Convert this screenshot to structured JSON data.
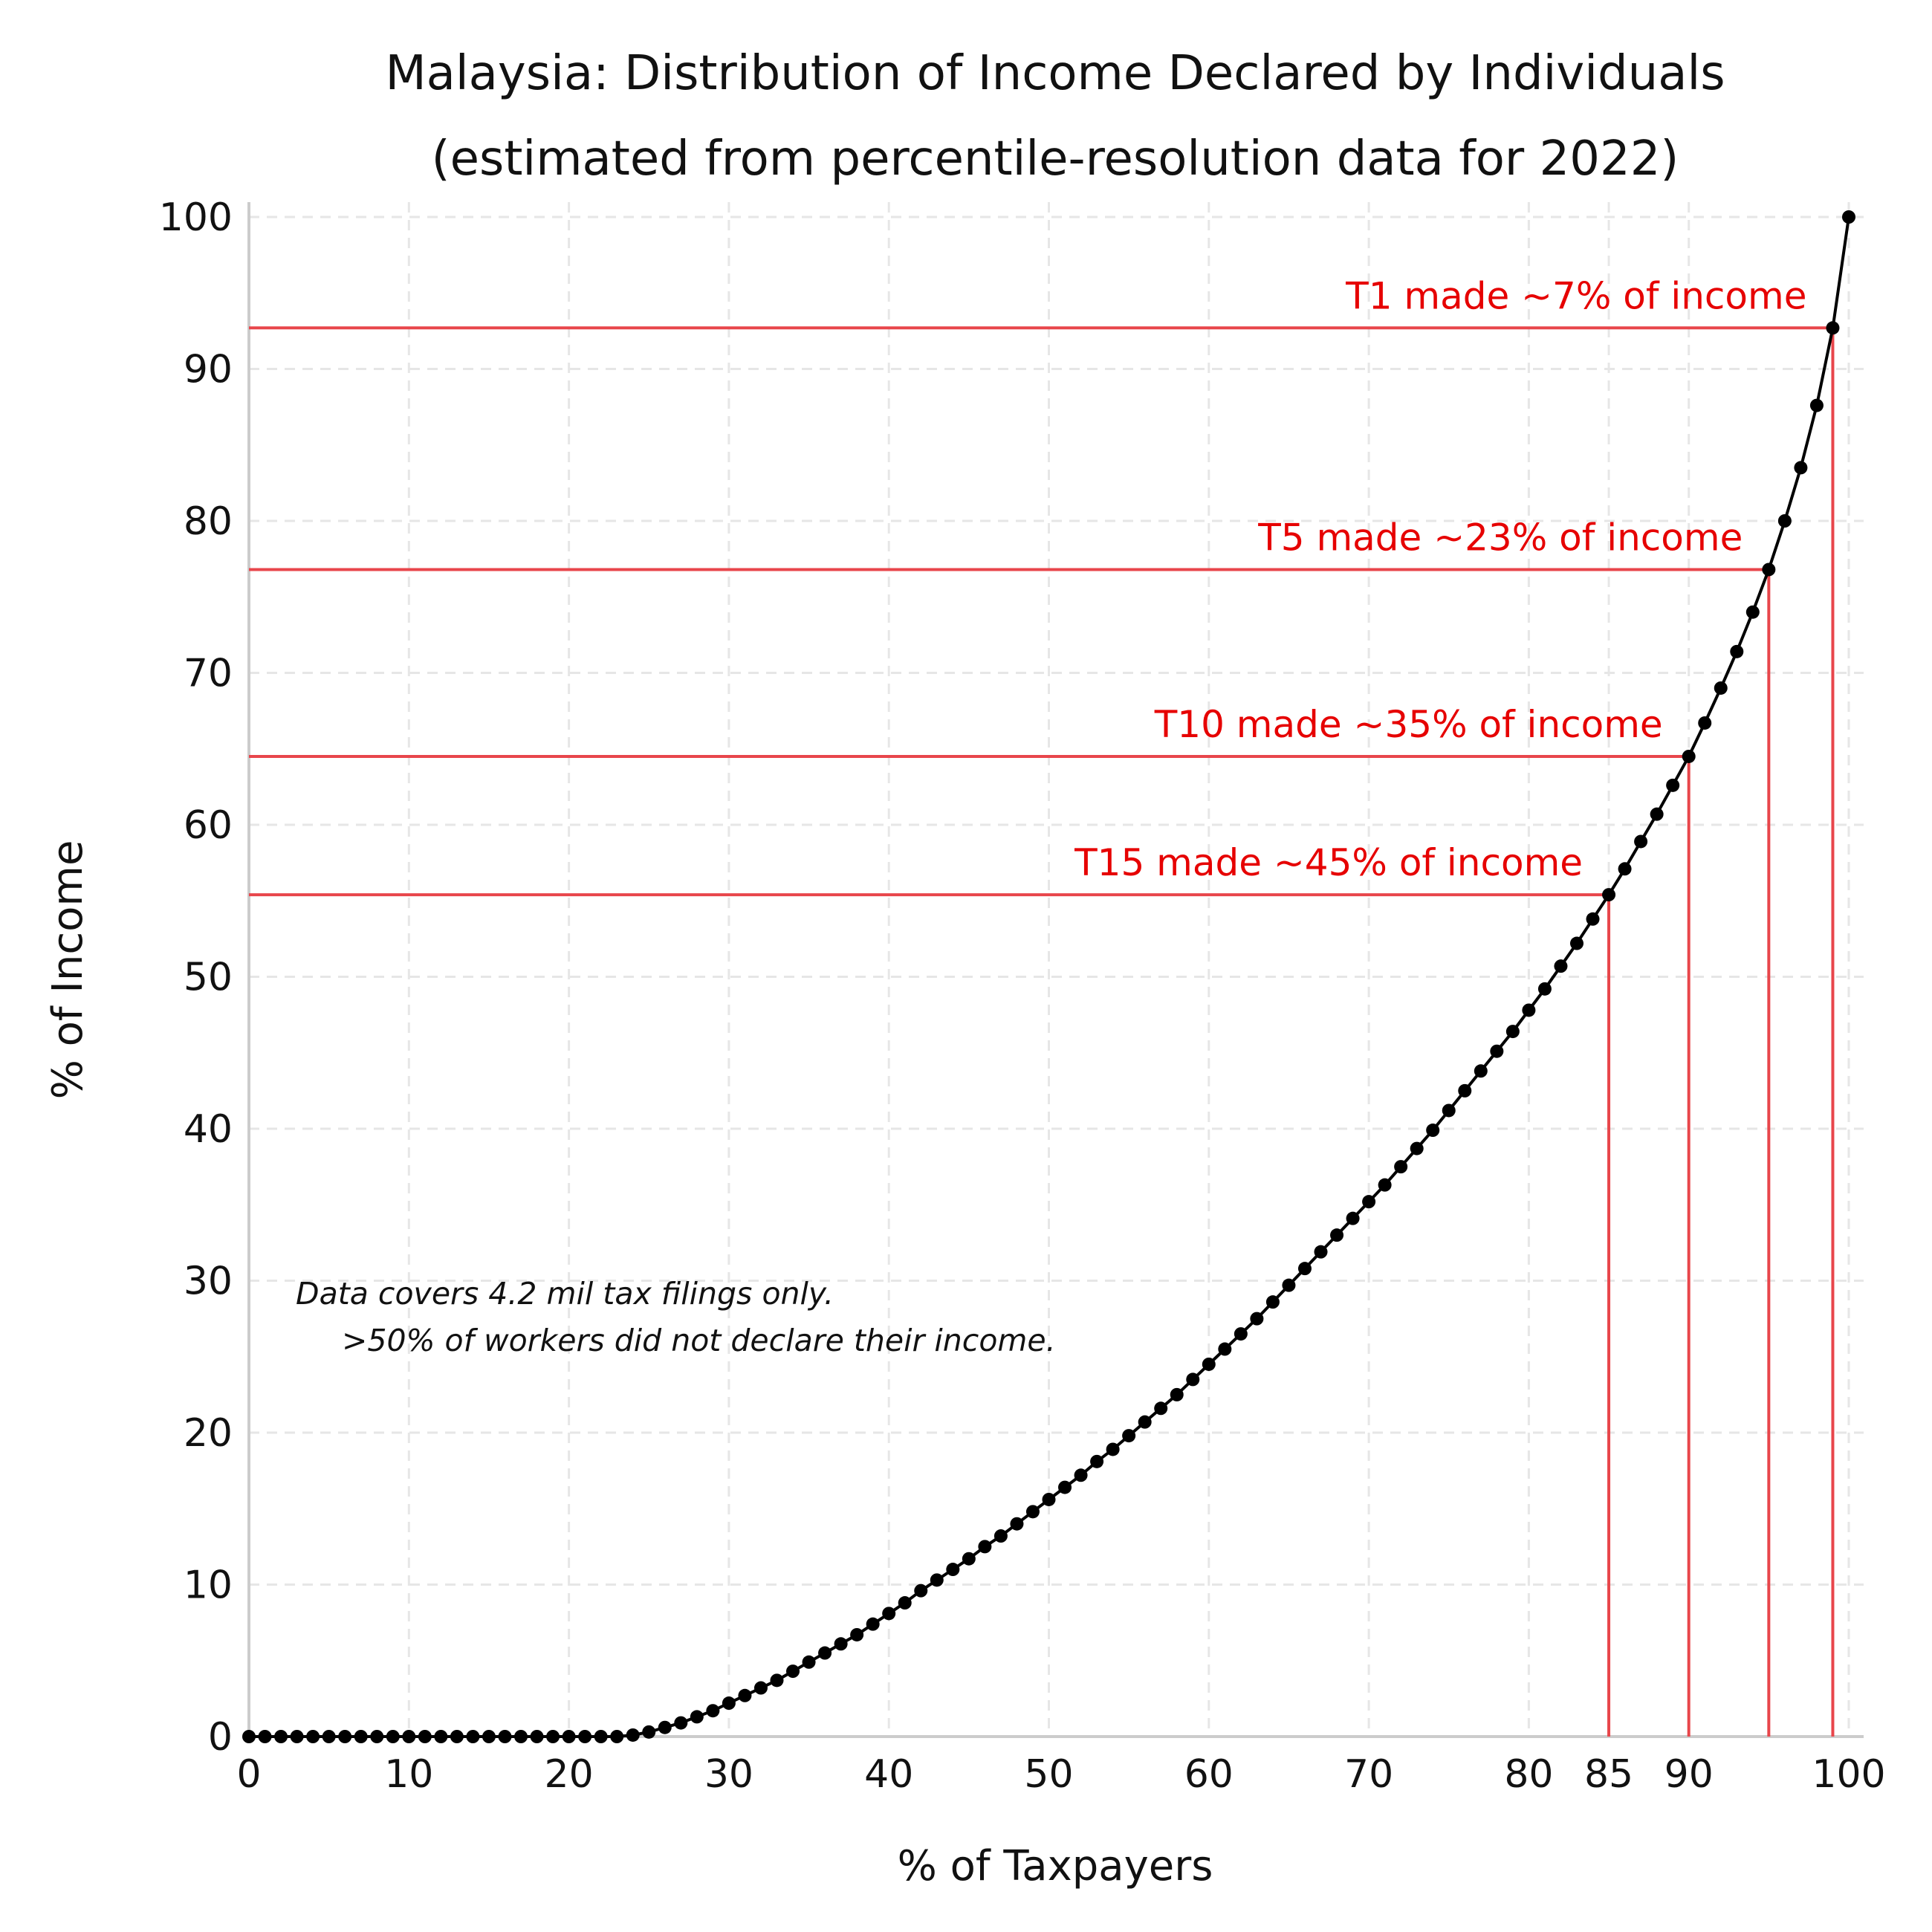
{
  "chart_data": {
    "type": "line",
    "title": "Malaysia: Distribution of Income Declared by Individuals",
    "subtitle": "(estimated from percentile-resolution data for 2022)",
    "xlabel": "% of Taxpayers",
    "ylabel": "% of Income",
    "xlim": [
      0,
      100
    ],
    "ylim": [
      0,
      100
    ],
    "xticks": [
      0,
      10,
      20,
      30,
      40,
      50,
      60,
      70,
      80,
      85,
      90,
      100
    ],
    "yticks": [
      0,
      10,
      20,
      30,
      40,
      50,
      60,
      70,
      80,
      90,
      100
    ],
    "grid": true,
    "x": [
      0,
      1,
      2,
      3,
      4,
      5,
      6,
      7,
      8,
      9,
      10,
      11,
      12,
      13,
      14,
      15,
      16,
      17,
      18,
      19,
      20,
      21,
      22,
      23,
      24,
      25,
      26,
      27,
      28,
      29,
      30,
      31,
      32,
      33,
      34,
      35,
      36,
      37,
      38,
      39,
      40,
      41,
      42,
      43,
      44,
      45,
      46,
      47,
      48,
      49,
      50,
      51,
      52,
      53,
      54,
      55,
      56,
      57,
      58,
      59,
      60,
      61,
      62,
      63,
      64,
      65,
      66,
      67,
      68,
      69,
      70,
      71,
      72,
      73,
      74,
      75,
      76,
      77,
      78,
      79,
      80,
      81,
      82,
      83,
      84,
      85,
      86,
      87,
      88,
      89,
      90,
      91,
      92,
      93,
      94,
      95,
      96,
      97,
      98,
      99,
      100
    ],
    "y": [
      0,
      0,
      0,
      0,
      0,
      0,
      0,
      0,
      0,
      0,
      0,
      0,
      0,
      0,
      0,
      0,
      0,
      0,
      0,
      0,
      0,
      0,
      0,
      0,
      0.1,
      0.3,
      0.6,
      0.9,
      1.3,
      1.7,
      2.2,
      2.7,
      3.2,
      3.7,
      4.3,
      4.9,
      5.5,
      6.1,
      6.7,
      7.4,
      8.1,
      8.8,
      9.6,
      10.3,
      11.0,
      11.7,
      12.5,
      13.2,
      14.0,
      14.8,
      15.6,
      16.4,
      17.2,
      18.1,
      18.9,
      19.8,
      20.7,
      21.6,
      22.5,
      23.5,
      24.5,
      25.5,
      26.5,
      27.5,
      28.6,
      29.7,
      30.8,
      31.9,
      33.0,
      34.1,
      35.2,
      36.3,
      37.5,
      38.7,
      39.9,
      41.2,
      42.5,
      43.8,
      45.1,
      46.4,
      47.8,
      49.2,
      50.7,
      52.2,
      53.8,
      55.4,
      57.1,
      58.9,
      60.7,
      62.6,
      64.5,
      66.7,
      69.0,
      71.4,
      74.0,
      76.8,
      80.0,
      83.5,
      87.6,
      92.7,
      100
    ],
    "reference_lines": [
      {
        "x": 85,
        "y": 55.4,
        "label": "T15 made ~45% of income"
      },
      {
        "x": 90,
        "y": 64.5,
        "label": "T10 made ~35% of income"
      },
      {
        "x": 95,
        "y": 76.8,
        "label": "T5 made ~23% of income"
      },
      {
        "x": 99,
        "y": 92.7,
        "label": "T1 made ~7% of income"
      }
    ],
    "note": [
      "Data covers 4.2 mil tax filings only.",
      ">50% of workers did not declare their income."
    ],
    "colors": {
      "curve": "#000000",
      "reference": "#e8464b",
      "annotation": "#e60000"
    }
  }
}
